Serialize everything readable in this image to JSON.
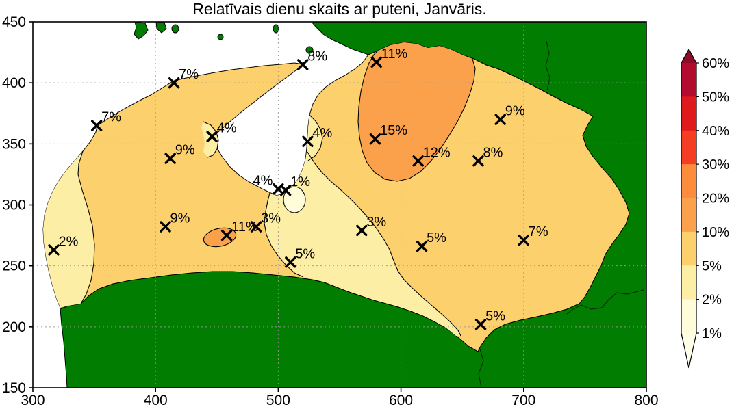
{
  "chart_data": {
    "type": "heatmap",
    "subtype": "filled-contour-map",
    "title": "Relatīvais dienu skaits ar puteni, Janvāris.",
    "xlabel": "",
    "ylabel": "",
    "xlim": [
      300,
      800
    ],
    "ylim": [
      150,
      450
    ],
    "x_ticks": [
      300,
      400,
      500,
      600,
      700,
      800
    ],
    "y_ticks": [
      450,
      400,
      350,
      300,
      250,
      200,
      150
    ],
    "grid": true,
    "legend_position": "right",
    "contour_levels_pct": [
      1,
      2,
      5,
      10,
      20,
      30,
      40,
      50,
      60
    ],
    "stations": [
      {
        "x": 415,
        "y": 400,
        "label": "7%",
        "label_side": "right"
      },
      {
        "x": 352,
        "y": 365,
        "label": "7%",
        "label_side": "right"
      },
      {
        "x": 446,
        "y": 356,
        "label": "4%",
        "label_side": "right"
      },
      {
        "x": 412,
        "y": 338,
        "label": "9%",
        "label_side": "right"
      },
      {
        "x": 520,
        "y": 415,
        "label": "8%",
        "label_side": "right"
      },
      {
        "x": 580,
        "y": 417,
        "label": "11%",
        "label_side": "right"
      },
      {
        "x": 524,
        "y": 352,
        "label": "4%",
        "label_side": "right"
      },
      {
        "x": 579,
        "y": 354,
        "label": "15%",
        "label_side": "right"
      },
      {
        "x": 614,
        "y": 336,
        "label": "12%",
        "label_side": "right"
      },
      {
        "x": 681,
        "y": 370,
        "label": "9%",
        "label_side": "right"
      },
      {
        "x": 663,
        "y": 336,
        "label": "8%",
        "label_side": "right"
      },
      {
        "x": 500,
        "y": 313,
        "label": "4%",
        "label_side": "left"
      },
      {
        "x": 506,
        "y": 312,
        "label": "1%",
        "label_side": "right"
      },
      {
        "x": 408,
        "y": 282,
        "label": "9%",
        "label_side": "right"
      },
      {
        "x": 458,
        "y": 275,
        "label": "11%",
        "label_side": "right"
      },
      {
        "x": 482,
        "y": 282,
        "label": "3%",
        "label_side": "right"
      },
      {
        "x": 510,
        "y": 253,
        "label": "5%",
        "label_side": "right"
      },
      {
        "x": 317,
        "y": 263,
        "label": "2%",
        "label_side": "right"
      },
      {
        "x": 568,
        "y": 279,
        "label": "3%",
        "label_side": "right"
      },
      {
        "x": 617,
        "y": 266,
        "label": "5%",
        "label_side": "right"
      },
      {
        "x": 700,
        "y": 271,
        "label": "7%",
        "label_side": "right"
      },
      {
        "x": 665,
        "y": 202,
        "label": "5%",
        "label_side": "right"
      }
    ],
    "colorbar": {
      "position": "right",
      "labels_top_to_bottom": [
        "60%",
        "50%",
        "40%",
        "30%",
        "20%",
        "10%",
        "5%",
        "2%",
        "1%"
      ],
      "segment_colors_top_to_bottom": [
        "#b30b2f",
        "#e01a1c",
        "#f43d23",
        "#fd8d3c",
        "#fba04b",
        "#fdd06e",
        "#fdeea6",
        "#fffcda"
      ],
      "over_color": "#8f0a26",
      "under_color": "#ffffe8"
    },
    "region_colors": {
      "sea": "#ffffff",
      "foreign_land": "#017e01",
      "band_1_2_pct": "#fffcda",
      "band_2_5_pct": "#fdeea6",
      "band_5_10_pct": "#fdd06e",
      "band_10_20_pct": "#fba04b",
      "contour_line": "#000000",
      "grid_line": "#999999",
      "marker": "#000000"
    }
  }
}
